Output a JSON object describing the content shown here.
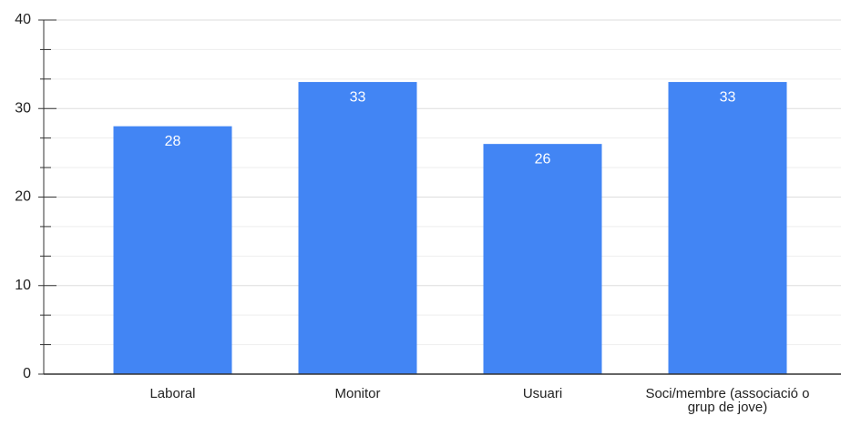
{
  "chart_data": {
    "type": "bar",
    "categories": [
      "Laboral",
      "Monitor",
      "Usuari",
      "Soci/membre (associació o grup de jove)"
    ],
    "values": [
      28,
      33,
      26,
      33
    ],
    "color": "#4285f4",
    "ylim": [
      0,
      40
    ],
    "yticks": [
      0,
      10,
      20,
      30,
      40
    ],
    "grid": true
  }
}
